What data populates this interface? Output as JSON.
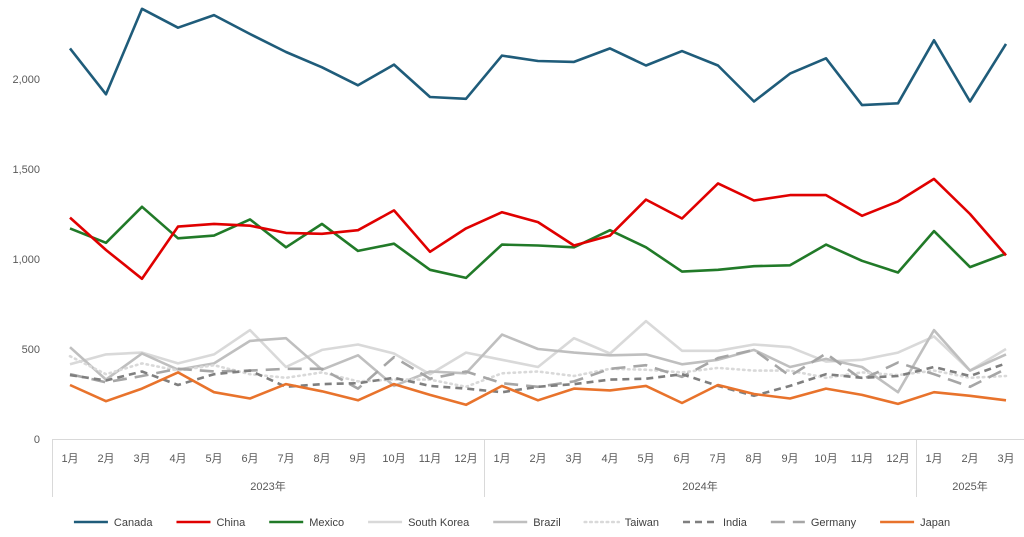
{
  "chart_data": {
    "type": "line",
    "title": "",
    "xlabel": "",
    "ylabel": "",
    "ylim": [
      0,
      2500
    ],
    "yticks": [
      0,
      500,
      1000,
      1500,
      2000
    ],
    "ytick_labels": [
      "0",
      "500",
      "1,000",
      "1,500",
      "2,000"
    ],
    "grid": false,
    "legend_position": "bottom",
    "month_labels": [
      "1月",
      "2月",
      "3月",
      "4月",
      "5月",
      "6月",
      "7月",
      "8月",
      "9月",
      "10月",
      "11月",
      "12月",
      "1月",
      "2月",
      "3月",
      "4月",
      "5月",
      "6月",
      "7月",
      "8月",
      "9月",
      "10月",
      "11月",
      "12月",
      "1月",
      "2月",
      "3月"
    ],
    "year_groups": [
      {
        "label": "2023年",
        "months": 12
      },
      {
        "label": "2024年",
        "months": 12
      },
      {
        "label": "2025年",
        "months": 3
      }
    ],
    "series": [
      {
        "name": "Canada",
        "color": "#1f5c7a",
        "dash": "solid",
        "values": [
          2170,
          1915,
          2390,
          2285,
          2355,
          2250,
          2150,
          2065,
          1965,
          2080,
          1900,
          1890,
          2130,
          2100,
          2095,
          2170,
          2075,
          2155,
          2075,
          1875,
          2030,
          2115,
          1855,
          1865,
          2215,
          1875,
          2195
        ]
      },
      {
        "name": "China",
        "color": "#e00000",
        "dash": "solid",
        "values": [
          1230,
          1050,
          890,
          1180,
          1195,
          1185,
          1145,
          1140,
          1160,
          1270,
          1040,
          1170,
          1260,
          1205,
          1075,
          1130,
          1330,
          1225,
          1420,
          1325,
          1355,
          1355,
          1240,
          1320,
          1445,
          1250,
          1020
        ]
      },
      {
        "name": "Mexico",
        "color": "#217a28",
        "dash": "solid",
        "values": [
          1170,
          1090,
          1290,
          1115,
          1130,
          1220,
          1065,
          1195,
          1045,
          1085,
          940,
          895,
          1080,
          1075,
          1065,
          1160,
          1065,
          930,
          940,
          960,
          965,
          1080,
          990,
          925,
          1155,
          955,
          1030
        ]
      },
      {
        "name": "South Korea",
        "color": "#d9d9d9",
        "dash": "solid",
        "values": [
          415,
          470,
          480,
          420,
          470,
          605,
          400,
          495,
          525,
          475,
          360,
          480,
          440,
          400,
          560,
          475,
          655,
          490,
          490,
          525,
          510,
          430,
          440,
          480,
          570,
          380,
          500
        ]
      },
      {
        "name": "Brazil",
        "color": "#bfbfbf",
        "dash": "solid",
        "values": [
          510,
          330,
          475,
          385,
          420,
          545,
          560,
          385,
          465,
          295,
          375,
          365,
          580,
          500,
          480,
          465,
          470,
          415,
          440,
          495,
          400,
          445,
          400,
          260,
          605,
          380,
          470
        ]
      },
      {
        "name": "Taiwan",
        "color": "#d9d9d9",
        "dash": "dot",
        "values": [
          460,
          360,
          420,
          380,
          410,
          360,
          340,
          370,
          320,
          330,
          330,
          290,
          365,
          375,
          350,
          390,
          385,
          370,
          395,
          380,
          380,
          340,
          370,
          355,
          380,
          340,
          350
        ]
      },
      {
        "name": "India",
        "color": "#7f7f7f",
        "dash": "dash",
        "values": [
          355,
          325,
          375,
          300,
          360,
          380,
          290,
          305,
          310,
          340,
          295,
          280,
          260,
          290,
          305,
          330,
          335,
          360,
          295,
          240,
          295,
          360,
          340,
          350,
          400,
          350,
          420
        ]
      },
      {
        "name": "Germany",
        "color": "#a6a6a6",
        "dash": "longdash",
        "values": [
          360,
          315,
          350,
          390,
          375,
          380,
          390,
          390,
          280,
          455,
          335,
          375,
          310,
          290,
          320,
          390,
          410,
          345,
          450,
          495,
          350,
          475,
          330,
          425,
          360,
          290,
          390
        ]
      },
      {
        "name": "Japan",
        "color": "#e8732c",
        "dash": "solid",
        "values": [
          300,
          210,
          280,
          370,
          260,
          225,
          305,
          265,
          215,
          305,
          245,
          190,
          295,
          215,
          280,
          270,
          295,
          200,
          300,
          250,
          225,
          280,
          245,
          195,
          260,
          240,
          215
        ]
      }
    ]
  }
}
